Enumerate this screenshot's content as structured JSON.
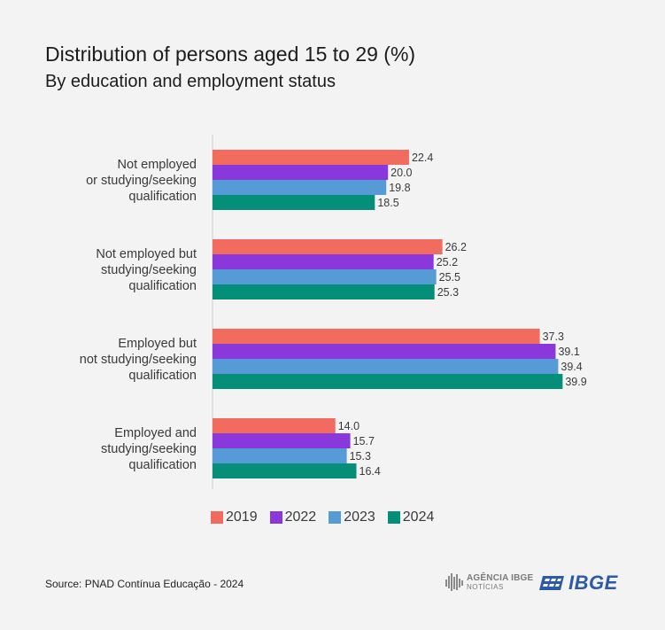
{
  "header": {
    "title": "Distribution of persons aged 15 to 29 (%)",
    "subtitle": "By education and employment status"
  },
  "chart_data": {
    "type": "bar",
    "orientation": "horizontal",
    "categories": [
      [
        "Not employed",
        "or studying/seeking",
        "qualification"
      ],
      [
        "Not employed but",
        "studying/seeking",
        "qualification"
      ],
      [
        "Employed but",
        "not studying/seeking",
        "qualification"
      ],
      [
        "Employed and",
        "studying/seeking",
        "qualification"
      ]
    ],
    "series": [
      {
        "name": "2019",
        "color": "#f26b5f",
        "values": [
          22.4,
          26.2,
          37.3,
          14.0
        ]
      },
      {
        "name": "2022",
        "color": "#8a37dc",
        "values": [
          20.0,
          25.2,
          39.1,
          15.7
        ]
      },
      {
        "name": "2023",
        "color": "#579bd6",
        "values": [
          19.8,
          25.5,
          39.4,
          15.3
        ]
      },
      {
        "name": "2024",
        "color": "#068f78",
        "values": [
          18.5,
          25.3,
          39.9,
          16.4
        ]
      }
    ],
    "value_format": "0.0",
    "xlim": [
      0,
      44
    ],
    "grid": false,
    "legend_position": "bottom"
  },
  "footer": {
    "source": "Source: PNAD Contínua Educação - 2024",
    "logo_agencia_name": "AGÊNCIA IBGE",
    "logo_agencia_sub": "NOTÍCIAS",
    "logo_ibge": "IBGE"
  }
}
